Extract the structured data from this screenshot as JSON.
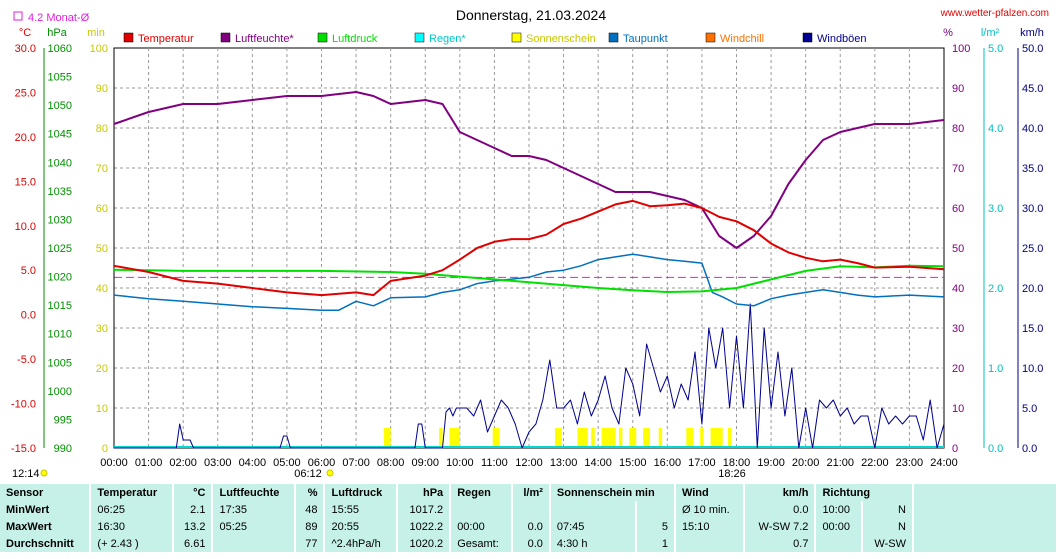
{
  "header": {
    "title": "Donnerstag, 21.03.2024",
    "site": "www.wetter-pfalzen.com",
    "monthly_avg": "4.2 Monat-Ø",
    "sunrise_time": "06:12",
    "sunset_time": "18:26",
    "extra_time": "12:14"
  },
  "colors": {
    "temperature": "#e00000",
    "humidity": "#800080",
    "pressure": "#00e000",
    "rain": "#00d8d8",
    "sunshine": "#ffff00",
    "dewpoint": "#0070c0",
    "windchill": "#ff7000",
    "gusts": "#000090"
  },
  "legend": [
    {
      "label": "Temperatur",
      "color": "#e00000"
    },
    {
      "label": "Luftfeuchte*",
      "color": "#800080"
    },
    {
      "label": "Luftdruck",
      "color": "#00e000"
    },
    {
      "label": "Regen*",
      "color": "#00ffff"
    },
    {
      "label": "Sonnenschein",
      "color": "#ffff00"
    },
    {
      "label": "Taupunkt",
      "color": "#0070c0"
    },
    {
      "label": "Windchill",
      "color": "#ff7000"
    },
    {
      "label": "Windböen",
      "color": "#000090"
    }
  ],
  "chart_data": {
    "type": "line",
    "x_labels": [
      "00:00",
      "01:00",
      "02:00",
      "03:00",
      "04:00",
      "05:00",
      "06:00",
      "07:00",
      "08:00",
      "09:00",
      "10:00",
      "11:00",
      "12:00",
      "13:00",
      "14:00",
      "15:00",
      "16:00",
      "17:00",
      "18:00",
      "19:00",
      "20:00",
      "21:00",
      "22:00",
      "23:00",
      "24:00"
    ],
    "axes": {
      "temperature": {
        "unit": "°C",
        "range": [
          -15,
          30
        ],
        "ticks": [
          "30.0",
          "25.0",
          "20.0",
          "15.0",
          "10.0",
          "5.0",
          "0.0",
          "-5.0",
          "-10.0",
          "-15.0"
        ]
      },
      "pressure": {
        "unit": "hPa",
        "range": [
          990,
          1060
        ],
        "ticks": [
          "1060",
          "1055",
          "1050",
          "1045",
          "1040",
          "1035",
          "1030",
          "1025",
          "1020",
          "1015",
          "1010",
          "1005",
          "1000",
          "995",
          "990"
        ]
      },
      "sunshine": {
        "unit": "min",
        "range": [
          0,
          100
        ],
        "ticks": [
          "100",
          "90",
          "80",
          "70",
          "60",
          "50",
          "40",
          "30",
          "20",
          "10",
          "0"
        ]
      },
      "humidity": {
        "unit": "%",
        "range": [
          0,
          100
        ],
        "ticks": [
          "100",
          "90",
          "80",
          "70",
          "60",
          "50",
          "40",
          "30",
          "20",
          "10",
          "0"
        ]
      },
      "rain": {
        "unit": "l/m²",
        "range": [
          0,
          5
        ],
        "ticks": [
          "5.0",
          "4.0",
          "3.0",
          "2.0",
          "1.0",
          "0.0"
        ]
      },
      "wind": {
        "unit": "km/h",
        "range": [
          0,
          50
        ],
        "ticks": [
          "50.0",
          "45.0",
          "40.0",
          "35.0",
          "30.0",
          "25.0",
          "20.0",
          "15.0",
          "10.0",
          "5.0",
          "0.0"
        ]
      }
    },
    "monthly_avg_temp": 4.2,
    "series": [
      {
        "name": "Temperatur",
        "axis": "temperature",
        "x": [
          0,
          1,
          2,
          3,
          4,
          5,
          6,
          7,
          7.5,
          8,
          9,
          9.5,
          10,
          10.5,
          11,
          11.5,
          12,
          12.5,
          13,
          13.5,
          14,
          14.5,
          15,
          15.5,
          16,
          16.5,
          17,
          17.5,
          18,
          18.5,
          19,
          19.5,
          20,
          20.5,
          21,
          21.5,
          22,
          23,
          24
        ],
        "y": [
          5.5,
          4.8,
          3.8,
          3.5,
          3.0,
          2.5,
          2.2,
          2.5,
          2.2,
          3.8,
          4.4,
          5.0,
          6.2,
          7.5,
          8.2,
          8.5,
          8.5,
          9.0,
          10.2,
          10.8,
          11.6,
          12.4,
          12.8,
          12.2,
          12.3,
          12.5,
          12.0,
          11.0,
          10.5,
          9.5,
          8.0,
          7.0,
          6.4,
          6.0,
          6.2,
          5.8,
          5.3,
          5.4,
          5.1
        ]
      },
      {
        "name": "Luftfeuchte*",
        "axis": "humidity",
        "x": [
          0,
          1,
          2,
          3,
          4,
          5,
          6,
          7,
          7.5,
          8,
          9,
          9.5,
          10,
          10.5,
          11,
          11.5,
          12,
          12.5,
          13,
          13.5,
          14,
          14.5,
          15,
          15.5,
          16,
          16.5,
          17,
          17.5,
          18,
          18.5,
          19,
          19.5,
          20,
          20.5,
          21,
          21.5,
          22,
          23,
          24
        ],
        "y": [
          81,
          84,
          86,
          86,
          87,
          88,
          88,
          89,
          88,
          86,
          87,
          86,
          79,
          77,
          75,
          73,
          73,
          72,
          70,
          68,
          66,
          64,
          64,
          64,
          63,
          62,
          60,
          53,
          50,
          53,
          58,
          66,
          72,
          77,
          79,
          80,
          81,
          81,
          82
        ]
      },
      {
        "name": "Luftdruck",
        "axis": "pressure",
        "x": [
          0,
          2,
          4,
          6,
          8,
          9,
          10,
          11,
          12,
          13,
          14,
          15,
          16,
          17,
          18,
          19,
          20,
          21,
          22,
          23,
          24
        ],
        "y": [
          1021.2,
          1021.0,
          1021.0,
          1021.0,
          1020.8,
          1020.5,
          1020.0,
          1019.5,
          1019.0,
          1018.5,
          1018.0,
          1017.6,
          1017.3,
          1017.4,
          1018.0,
          1019.5,
          1021.0,
          1021.8,
          1021.6,
          1021.9,
          1021.8
        ]
      },
      {
        "name": "Taupunkt",
        "axis": "temperature",
        "x": [
          0,
          1,
          2,
          3,
          4,
          5,
          6,
          6.5,
          7,
          7.5,
          8,
          9,
          9.5,
          10,
          10.5,
          11,
          11.5,
          12,
          12.5,
          13,
          13.5,
          14,
          14.5,
          15,
          15.5,
          16,
          16.5,
          17,
          17.3,
          17.6,
          18,
          18.5,
          19,
          19.5,
          20,
          20.5,
          21,
          21.5,
          22,
          23,
          24
        ],
        "y": [
          2.2,
          1.8,
          1.5,
          1.2,
          0.9,
          0.7,
          0.5,
          0.5,
          1.5,
          1.0,
          1.9,
          2.0,
          2.5,
          2.8,
          3.5,
          3.8,
          4.0,
          4.2,
          4.8,
          5.0,
          5.5,
          6.2,
          6.5,
          6.8,
          6.5,
          6.2,
          6.0,
          5.8,
          2.5,
          2.0,
          1.2,
          1.0,
          1.8,
          2.2,
          2.5,
          2.8,
          2.5,
          2.2,
          2.0,
          2.2,
          2.0
        ]
      },
      {
        "name": "Windböen",
        "axis": "wind",
        "x": [
          0,
          1.8,
          1.9,
          2.0,
          2.2,
          2.3,
          4.8,
          4.9,
          5.0,
          5.1,
          8.7,
          8.8,
          8.9,
          9.0,
          9.5,
          9.6,
          9.7,
          9.8,
          9.9,
          10.0,
          10.2,
          10.4,
          10.6,
          10.8,
          11.0,
          11.2,
          11.4,
          11.6,
          11.8,
          12.0,
          12.2,
          12.4,
          12.6,
          12.8,
          13.0,
          13.2,
          13.4,
          13.6,
          13.8,
          14.0,
          14.2,
          14.4,
          14.6,
          14.8,
          15.0,
          15.2,
          15.4,
          15.6,
          15.8,
          16.0,
          16.2,
          16.4,
          16.6,
          16.8,
          17.0,
          17.2,
          17.4,
          17.6,
          17.8,
          18.0,
          18.2,
          18.4,
          18.6,
          18.8,
          19.0,
          19.2,
          19.4,
          19.6,
          19.8,
          20.0,
          20.2,
          20.4,
          20.6,
          20.8,
          21.0,
          21.2,
          21.4,
          21.6,
          21.8,
          22.0,
          22.2,
          22.4,
          22.6,
          22.8,
          23.0,
          23.2,
          23.4,
          23.6,
          23.8,
          24.0
        ],
        "y": [
          0,
          0,
          3,
          1,
          1,
          0,
          0,
          1.5,
          1.5,
          0,
          0,
          3,
          3,
          0,
          0,
          4.5,
          5,
          4,
          5,
          5,
          5,
          4,
          6,
          2,
          4,
          6,
          5,
          3,
          0,
          2,
          3,
          6,
          11,
          5,
          5,
          6,
          3,
          7,
          4,
          6,
          9,
          5,
          3,
          10,
          8,
          4,
          13,
          10,
          7,
          9,
          5,
          8,
          6,
          12,
          3,
          15,
          10,
          15,
          5,
          14,
          5,
          18,
          0,
          15,
          5,
          12,
          4,
          10,
          0,
          5,
          0,
          6,
          5,
          6,
          4,
          5,
          3,
          4,
          4,
          0,
          5,
          3,
          4,
          3,
          4,
          4,
          1,
          6,
          0,
          3
        ]
      }
    ],
    "sunshine_bars": [
      [
        7.8,
        8.0
      ],
      [
        9.4,
        9.5
      ],
      [
        9.7,
        10.0
      ],
      [
        10.95,
        11.15
      ],
      [
        12.75,
        12.95
      ],
      [
        13.4,
        13.7
      ],
      [
        13.8,
        13.9
      ],
      [
        14.1,
        14.5
      ],
      [
        14.6,
        14.7
      ],
      [
        14.9,
        15.1
      ],
      [
        15.3,
        15.5
      ],
      [
        15.75,
        15.85
      ],
      [
        16.55,
        16.75
      ],
      [
        16.95,
        17.05
      ],
      [
        17.25,
        17.6
      ],
      [
        17.75,
        17.85
      ]
    ],
    "sunshine_bar_value": 5
  },
  "stats": {
    "header": {
      "sensor": "Sensor",
      "temp": "Temperatur",
      "temp_u": "°C",
      "hum": "Luftfeuchte",
      "hum_u": "%",
      "press": "Luftdruck",
      "press_u": "hPa",
      "rain": "Regen",
      "rain_u": "l/m²",
      "sun": "Sonnenschein min",
      "wind": "Wind",
      "wind_u": "km/h",
      "dir": "Richtung"
    },
    "min": {
      "label": "MinWert",
      "temp_t": "06:25",
      "temp_v": "2.1",
      "hum_t": "17:35",
      "hum_v": "48",
      "press_t": "15:55",
      "press_v": "1017.2",
      "rain_t": "",
      "rain_v": "",
      "sun_t": "",
      "sun_v": "",
      "wind_t": "Ø 10 min.",
      "wind_v": "0.0",
      "dir_t": "10:00",
      "dir_v": "N"
    },
    "max": {
      "label": "MaxWert",
      "temp_t": "16:30",
      "temp_v": "13.2",
      "hum_t": "05:25",
      "hum_v": "89",
      "press_t": "20:55",
      "press_v": "1022.2",
      "rain_t": "00:00",
      "rain_v": "0.0",
      "sun_t": "07:45",
      "sun_v": "5",
      "wind_t": "15:10",
      "wind_v": "W-SW 7.2",
      "dir_t": "00:00",
      "dir_v": "N"
    },
    "avg": {
      "label": "Durchschnitt",
      "temp_t": "(+ 2.43 )",
      "temp_v": "6.61",
      "hum_t": "",
      "hum_v": "77",
      "press_t": "^2.4hPa/h",
      "press_v": "1020.2",
      "rain_t": "Gesamt:",
      "rain_v": "0.0",
      "sun_t": "4:30 h",
      "sun_v": "1",
      "wind_t": "",
      "wind_v": "0.7",
      "dir_t": "",
      "dir_v": "W-SW"
    }
  }
}
